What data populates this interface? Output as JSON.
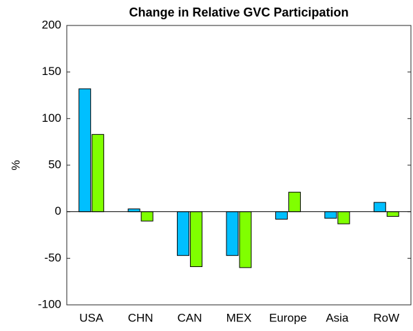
{
  "chart_data": {
    "type": "bar",
    "title": "Change in Relative GVC Participation",
    "y_label": "%",
    "categories": [
      "USA",
      "CHN",
      "CAN",
      "MEX",
      "Europe",
      "Asia",
      "RoW"
    ],
    "series": [
      {
        "color": "#00bfff",
        "values": [
          132,
          3,
          -47,
          -47,
          -8,
          -7,
          10
        ]
      },
      {
        "color": "#80ff00",
        "values": [
          83,
          -10,
          -59,
          -60,
          21,
          -13,
          -5
        ]
      }
    ],
    "ylim": [
      -100,
      200
    ],
    "yticks": [
      -100,
      -50,
      0,
      50,
      100,
      150,
      200
    ]
  }
}
